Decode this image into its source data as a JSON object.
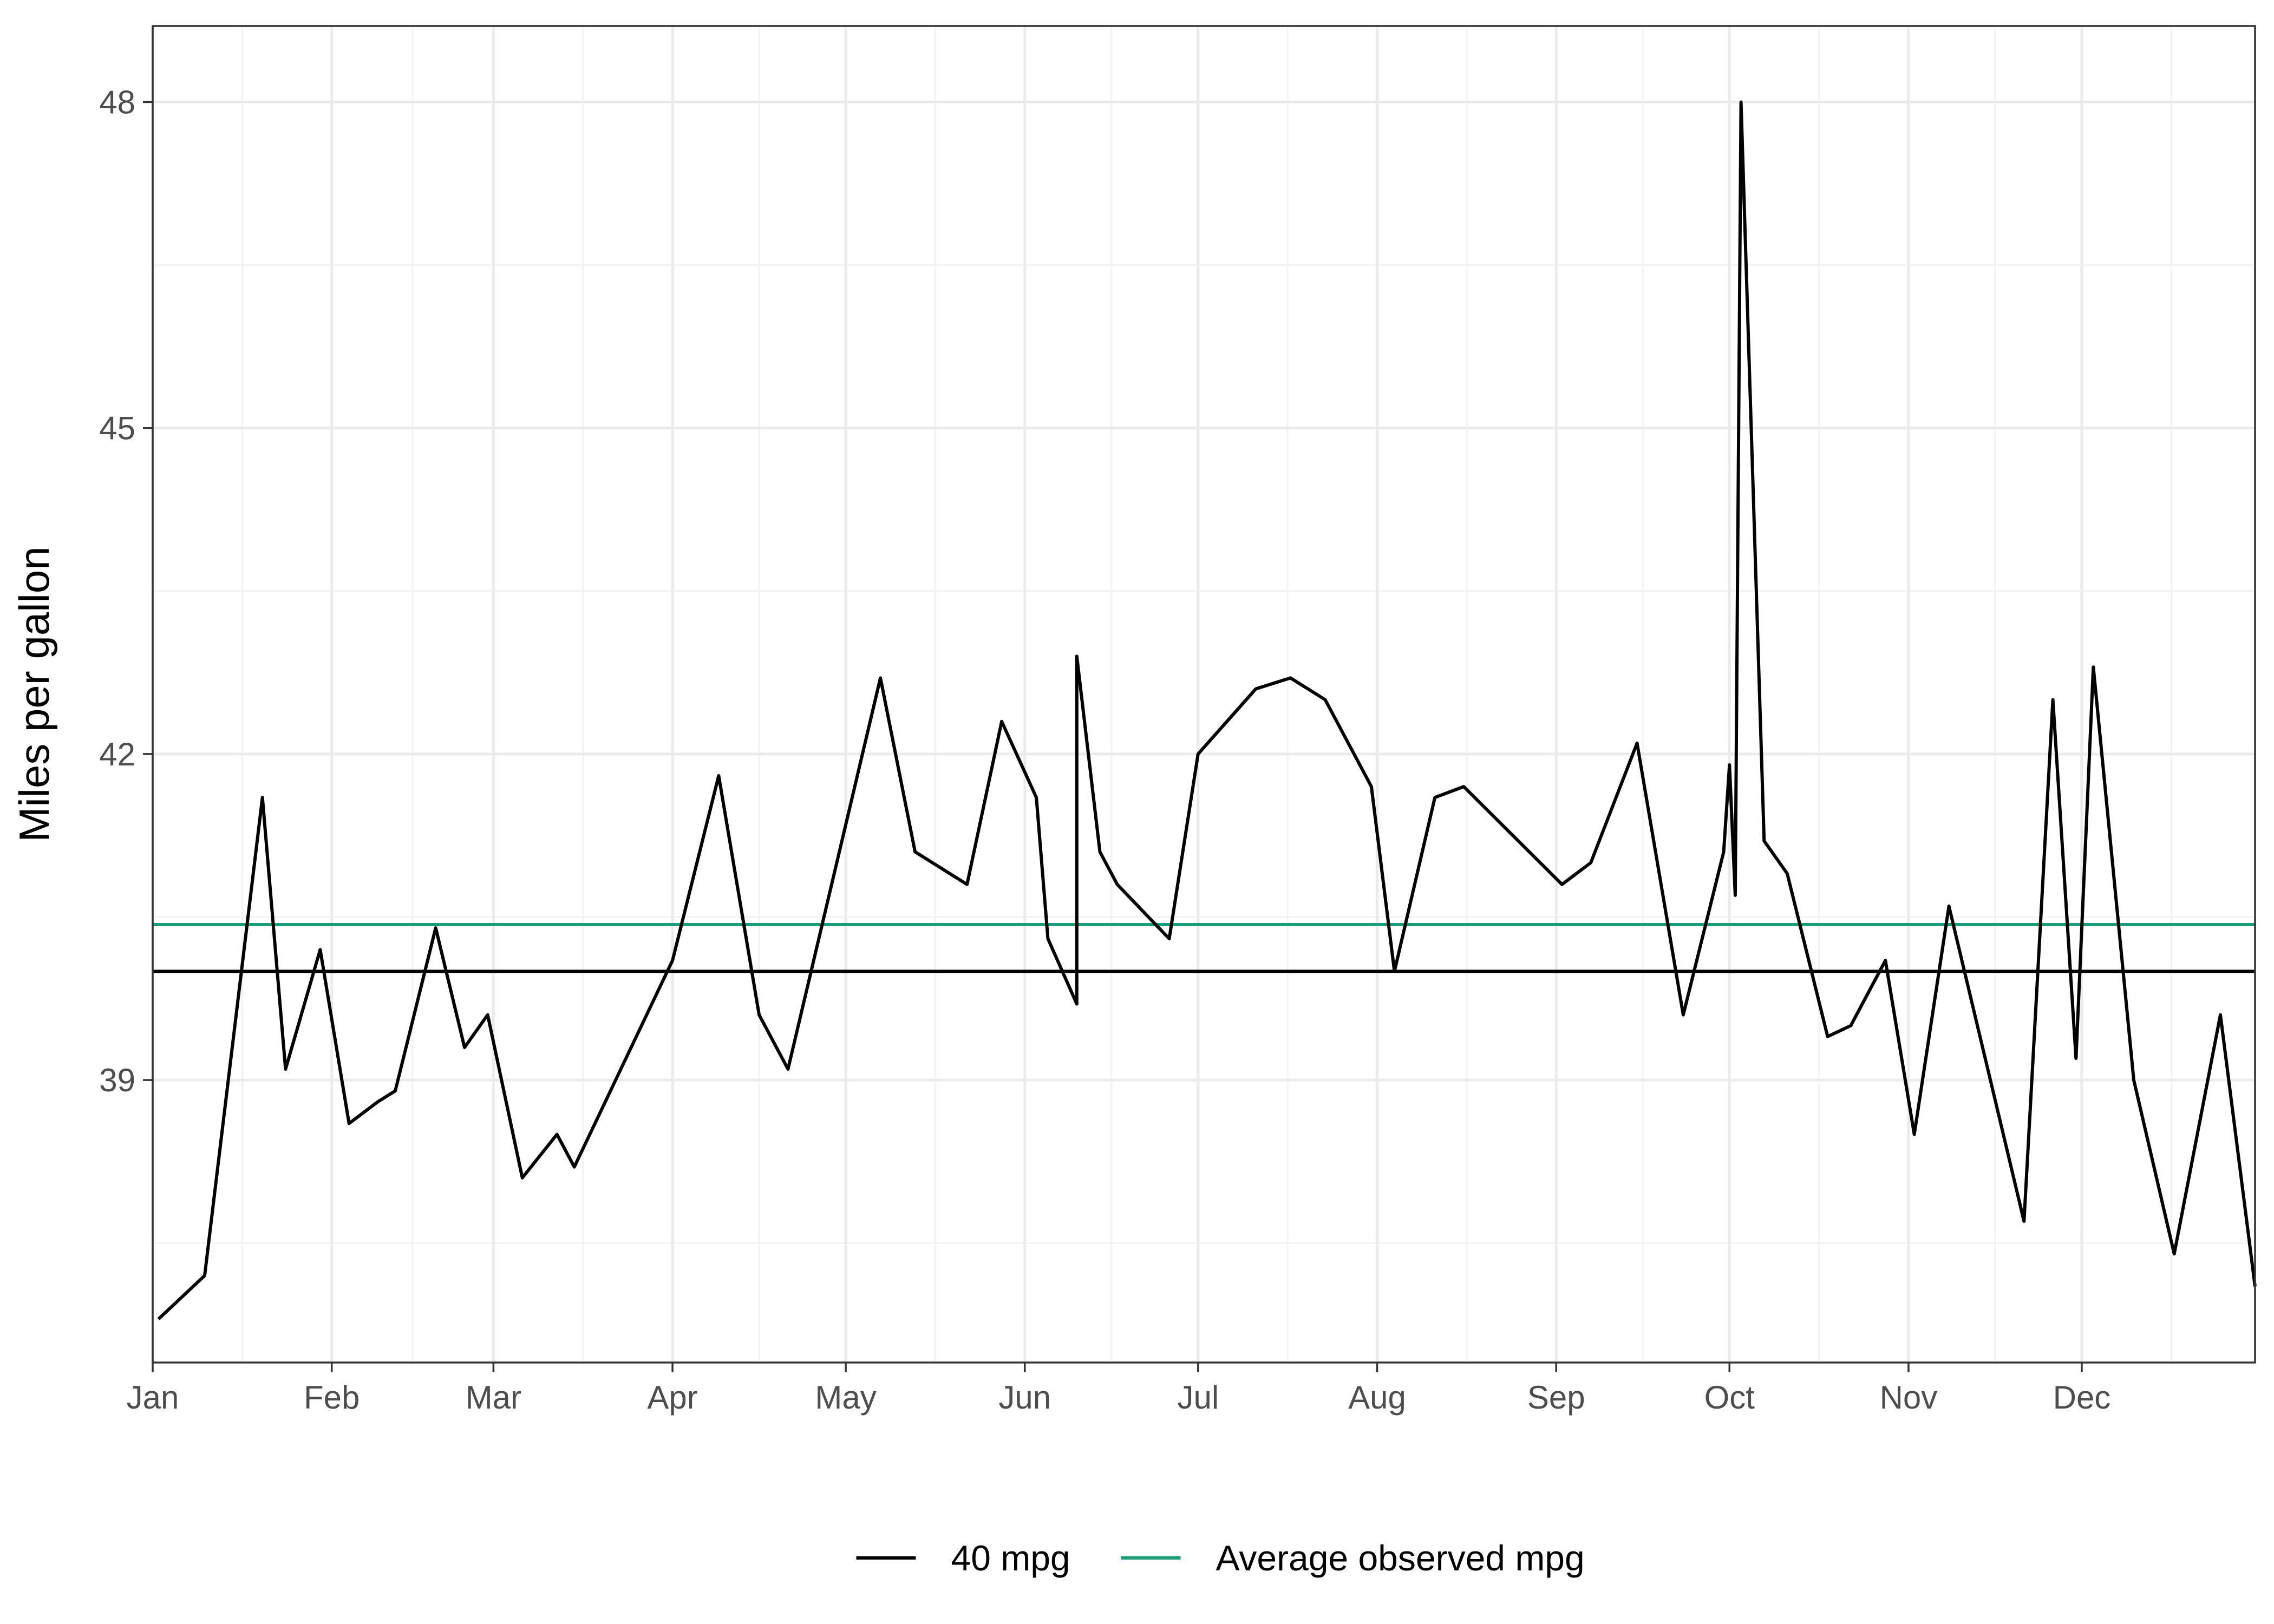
{
  "chart_data": {
    "type": "line",
    "title": "",
    "xlabel": "",
    "ylabel": "Miles per gallon",
    "x_axis": {
      "type": "date",
      "range": [
        "2019-01-01",
        "2019-12-31"
      ],
      "ticks": [
        {
          "date": "2019-01-01",
          "label": "Jan"
        },
        {
          "date": "2019-02-01",
          "label": "Feb"
        },
        {
          "date": "2019-03-01",
          "label": "Mar"
        },
        {
          "date": "2019-04-01",
          "label": "Apr"
        },
        {
          "date": "2019-05-01",
          "label": "May"
        },
        {
          "date": "2019-06-01",
          "label": "Jun"
        },
        {
          "date": "2019-07-01",
          "label": "Jul"
        },
        {
          "date": "2019-08-01",
          "label": "Aug"
        },
        {
          "date": "2019-09-01",
          "label": "Sep"
        },
        {
          "date": "2019-10-01",
          "label": "Oct"
        },
        {
          "date": "2019-11-01",
          "label": "Nov"
        },
        {
          "date": "2019-12-01",
          "label": "Dec"
        }
      ]
    },
    "y_axis": {
      "range": [
        36.4,
        48.7
      ],
      "ticks": [
        39,
        42,
        45,
        48
      ],
      "minor_ticks": [
        37.5,
        40.5,
        43.5,
        46.5
      ]
    },
    "grid": true,
    "legend_position": "bottom",
    "series": [
      {
        "name": "",
        "color": "#000000",
        "points": [
          {
            "x": "2019-01-02",
            "y": 36.8
          },
          {
            "x": "2019-01-10",
            "y": 37.2
          },
          {
            "x": "2019-01-20",
            "y": 41.6
          },
          {
            "x": "2019-01-24",
            "y": 39.1
          },
          {
            "x": "2019-01-30",
            "y": 40.2
          },
          {
            "x": "2019-02-04",
            "y": 38.6
          },
          {
            "x": "2019-02-09",
            "y": 38.8
          },
          {
            "x": "2019-02-12",
            "y": 38.9
          },
          {
            "x": "2019-02-19",
            "y": 40.4
          },
          {
            "x": "2019-02-24",
            "y": 39.3
          },
          {
            "x": "2019-02-28",
            "y": 39.6
          },
          {
            "x": "2019-03-06",
            "y": 38.1
          },
          {
            "x": "2019-03-12",
            "y": 38.5
          },
          {
            "x": "2019-03-15",
            "y": 38.2
          },
          {
            "x": "2019-04-01",
            "y": 40.1
          },
          {
            "x": "2019-04-09",
            "y": 41.8
          },
          {
            "x": "2019-04-16",
            "y": 39.6
          },
          {
            "x": "2019-04-21",
            "y": 39.1
          },
          {
            "x": "2019-05-07",
            "y": 42.7
          },
          {
            "x": "2019-05-13",
            "y": 41.1
          },
          {
            "x": "2019-05-22",
            "y": 40.8
          },
          {
            "x": "2019-05-28",
            "y": 42.3
          },
          {
            "x": "2019-06-03",
            "y": 41.6
          },
          {
            "x": "2019-06-05",
            "y": 40.3
          },
          {
            "x": "2019-06-10",
            "y": 39.7
          },
          {
            "x": "2019-06-10",
            "y": 42.9
          },
          {
            "x": "2019-06-14",
            "y": 41.1
          },
          {
            "x": "2019-06-17",
            "y": 40.8
          },
          {
            "x": "2019-06-26",
            "y": 40.3
          },
          {
            "x": "2019-07-01",
            "y": 42.0
          },
          {
            "x": "2019-07-11",
            "y": 42.6
          },
          {
            "x": "2019-07-17",
            "y": 42.7
          },
          {
            "x": "2019-07-23",
            "y": 42.5
          },
          {
            "x": "2019-07-31",
            "y": 41.7
          },
          {
            "x": "2019-08-04",
            "y": 40.0
          },
          {
            "x": "2019-08-11",
            "y": 41.6
          },
          {
            "x": "2019-08-16",
            "y": 41.7
          },
          {
            "x": "2019-09-02",
            "y": 40.8
          },
          {
            "x": "2019-09-07",
            "y": 41.0
          },
          {
            "x": "2019-09-15",
            "y": 42.1
          },
          {
            "x": "2019-09-23",
            "y": 39.6
          },
          {
            "x": "2019-09-30",
            "y": 41.1
          },
          {
            "x": "2019-10-01",
            "y": 41.9
          },
          {
            "x": "2019-10-02",
            "y": 40.7
          },
          {
            "x": "2019-10-03",
            "y": 48.0
          },
          {
            "x": "2019-10-07",
            "y": 41.2
          },
          {
            "x": "2019-10-11",
            "y": 40.9
          },
          {
            "x": "2019-10-18",
            "y": 39.4
          },
          {
            "x": "2019-10-22",
            "y": 39.5
          },
          {
            "x": "2019-10-28",
            "y": 40.1
          },
          {
            "x": "2019-11-02",
            "y": 38.5
          },
          {
            "x": "2019-11-08",
            "y": 40.6
          },
          {
            "x": "2019-11-21",
            "y": 37.7
          },
          {
            "x": "2019-11-26",
            "y": 42.5
          },
          {
            "x": "2019-11-30",
            "y": 39.2
          },
          {
            "x": "2019-12-03",
            "y": 42.8
          },
          {
            "x": "2019-12-10",
            "y": 39.0
          },
          {
            "x": "2019-12-17",
            "y": 37.4
          },
          {
            "x": "2019-12-25",
            "y": 39.6
          },
          {
            "x": "2019-12-31",
            "y": 37.1
          }
        ]
      }
    ],
    "reference_lines": [
      {
        "name": "40 mpg",
        "y": 40.0,
        "color": "#000000"
      },
      {
        "name": "Average observed mpg",
        "y": 40.43,
        "color": "#1b9e77"
      }
    ]
  }
}
